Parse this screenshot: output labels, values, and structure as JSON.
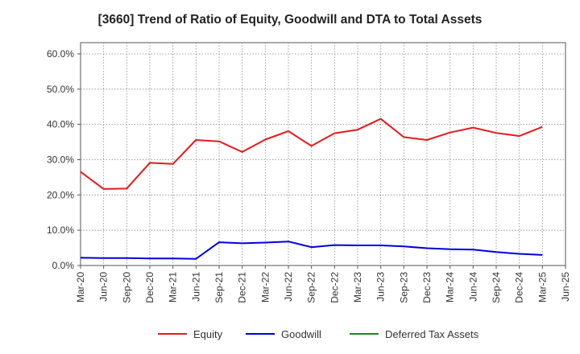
{
  "chart_data": {
    "type": "line",
    "title": "[3660]  Trend of Ratio of Equity, Goodwill and DTA to Total Assets",
    "categories": [
      "Mar-20",
      "Jun-20",
      "Sep-20",
      "Dec-20",
      "Mar-21",
      "Jun-21",
      "Sep-21",
      "Dec-21",
      "Mar-22",
      "Jun-22",
      "Sep-22",
      "Dec-22",
      "Mar-23",
      "Jun-23",
      "Sep-23",
      "Dec-23",
      "Mar-24",
      "Jun-24",
      "Sep-24",
      "Dec-24",
      "Mar-25",
      "Jun-25"
    ],
    "ylim": [
      0,
      60
    ],
    "yticks": [
      "0.0%",
      "10.0%",
      "20.0%",
      "30.0%",
      "40.0%",
      "50.0%",
      "60.0%"
    ],
    "ytick_values": [
      0,
      10,
      20,
      30,
      40,
      50,
      60
    ],
    "grid": true,
    "legend_position": "bottom",
    "series": [
      {
        "name": "Equity",
        "color": "#e41a1c",
        "values": [
          26.6,
          21.7,
          21.8,
          29.1,
          28.8,
          35.6,
          35.2,
          32.2,
          35.7,
          38.1,
          33.9,
          37.5,
          38.5,
          41.6,
          36.4,
          35.6,
          37.7,
          39.1,
          37.6,
          36.7,
          39.3,
          null
        ]
      },
      {
        "name": "Goodwill",
        "color": "#0000dd",
        "values": [
          2.2,
          2.1,
          2.1,
          2.0,
          2.0,
          1.9,
          6.6,
          6.3,
          6.5,
          6.8,
          5.2,
          5.8,
          5.7,
          5.7,
          5.4,
          4.9,
          4.6,
          4.5,
          3.8,
          3.3,
          3.0,
          null
        ]
      },
      {
        "name": "Deferred Tax Assets",
        "color": "#1a8a1a",
        "values": [
          null,
          null,
          null,
          null,
          null,
          null,
          null,
          null,
          null,
          null,
          null,
          null,
          null,
          null,
          null,
          null,
          null,
          null,
          null,
          null,
          null,
          null
        ]
      }
    ]
  }
}
